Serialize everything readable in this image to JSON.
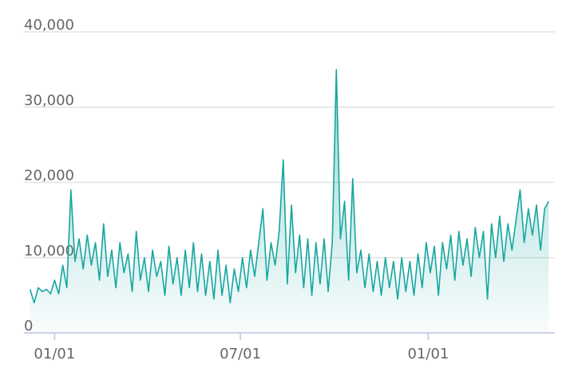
{
  "chart_data": {
    "type": "area",
    "color": "#17a6a0",
    "xlim": [
      -30,
      490
    ],
    "xticks": [
      {
        "value": 0,
        "label": "01/01"
      },
      {
        "value": 182,
        "label": "07/01"
      },
      {
        "value": 366,
        "label": "01/01"
      }
    ],
    "ylim": [
      0,
      40000
    ],
    "yticks": [
      {
        "value": 0,
        "label": "0"
      },
      {
        "value": 10000,
        "label": "10,000"
      },
      {
        "value": 20000,
        "label": "20,000"
      },
      {
        "value": 30000,
        "label": "30,000"
      },
      {
        "value": 40000,
        "label": "40,000"
      }
    ],
    "grid": true,
    "x": [
      -24,
      -20,
      -16,
      -12,
      -8,
      -4,
      0,
      4,
      8,
      12,
      16,
      20,
      24,
      28,
      32,
      36,
      40,
      44,
      48,
      52,
      56,
      60,
      64,
      68,
      72,
      76,
      80,
      84,
      88,
      92,
      96,
      100,
      104,
      108,
      112,
      116,
      120,
      124,
      128,
      132,
      136,
      140,
      144,
      148,
      152,
      156,
      160,
      164,
      168,
      172,
      176,
      180,
      184,
      188,
      192,
      196,
      200,
      204,
      208,
      212,
      216,
      220,
      224,
      228,
      232,
      236,
      240,
      244,
      248,
      252,
      256,
      260,
      264,
      268,
      272,
      276,
      280,
      284,
      288,
      292,
      296,
      300,
      304,
      308,
      312,
      316,
      320,
      324,
      328,
      332,
      336,
      340,
      344,
      348,
      352,
      356,
      360,
      364,
      368,
      372,
      376,
      380,
      384,
      388,
      392,
      396,
      400,
      404,
      408,
      412,
      416,
      420,
      424,
      428,
      432,
      436,
      440,
      444,
      448,
      452,
      456,
      460,
      464,
      468,
      472,
      476,
      480,
      484
    ],
    "values": [
      5800,
      4000,
      6000,
      5500,
      5800,
      5200,
      7000,
      5200,
      9000,
      6000,
      19000,
      9500,
      12500,
      8500,
      13000,
      9000,
      12000,
      7000,
      14500,
      7500,
      11000,
      6000,
      12000,
      8000,
      10500,
      5500,
      13500,
      7000,
      10000,
      5500,
      11000,
      7500,
      9500,
      5000,
      11500,
      6500,
      10000,
      5000,
      11000,
      6000,
      12000,
      5500,
      10500,
      5000,
      9500,
      4500,
      11000,
      5000,
      9000,
      4000,
      8500,
      5500,
      10000,
      6000,
      11000,
      7500,
      12000,
      16500,
      7000,
      12000,
      9000,
      13500,
      23000,
      6500,
      17000,
      8000,
      13000,
      6000,
      12500,
      5000,
      12000,
      6500,
      12500,
      5500,
      12000,
      35000,
      12500,
      17500,
      7000,
      20500,
      8000,
      11000,
      6000,
      10500,
      5500,
      9500,
      5000,
      10000,
      6000,
      9500,
      4500,
      10000,
      5500,
      9500,
      5000,
      10500,
      6000,
      12000,
      8000,
      11500,
      5000,
      12000,
      8500,
      13000,
      7000,
      13500,
      9000,
      12500,
      7500,
      14000,
      10000,
      13500,
      4500,
      14500,
      10000,
      15500,
      9500,
      14500,
      11000,
      15000,
      19000,
      12000,
      16500,
      13000,
      17000,
      11000,
      16500,
      17500
    ]
  }
}
